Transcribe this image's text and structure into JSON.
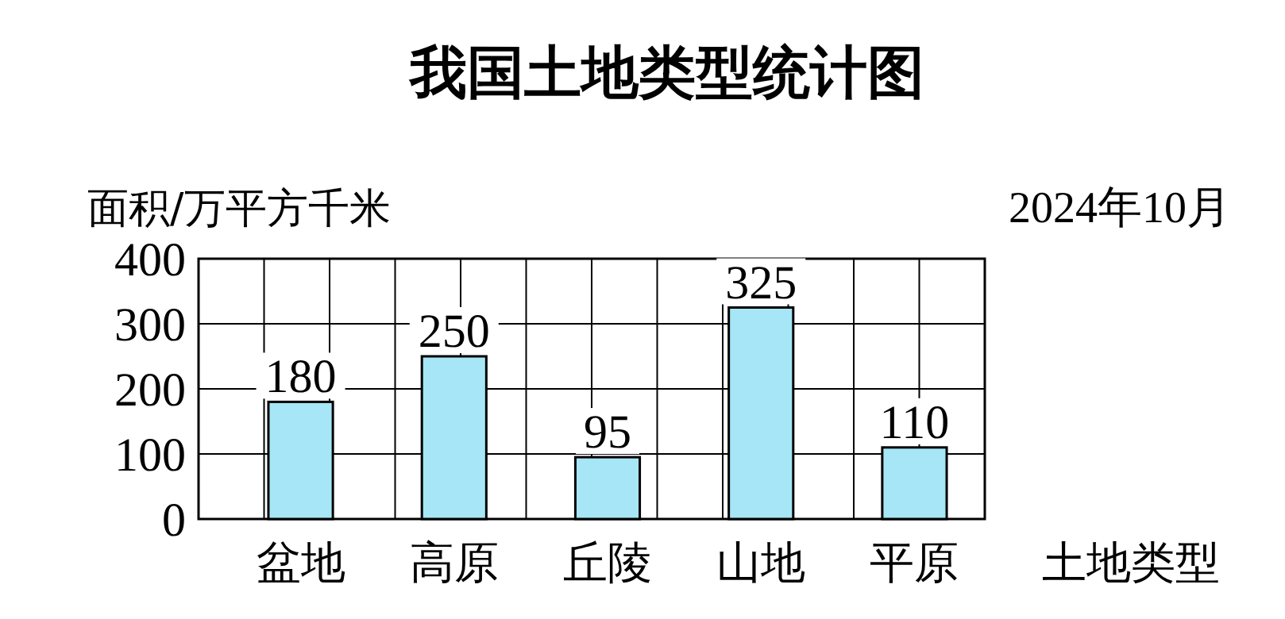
{
  "chart_data": {
    "type": "bar",
    "title": "我国土地类型统计图",
    "subtitle": "2024年10月",
    "ylabel": "面积/万平方千米",
    "xlabel": "土地类型",
    "categories": [
      "盆地",
      "高原",
      "丘陵",
      "山地",
      "平原"
    ],
    "values": [
      180,
      250,
      95,
      325,
      110
    ],
    "color": "#a6e6f6",
    "ylim": [
      0,
      400
    ],
    "yticks": [
      0,
      100,
      200,
      300,
      400
    ],
    "grid": true,
    "data_labels": true
  }
}
